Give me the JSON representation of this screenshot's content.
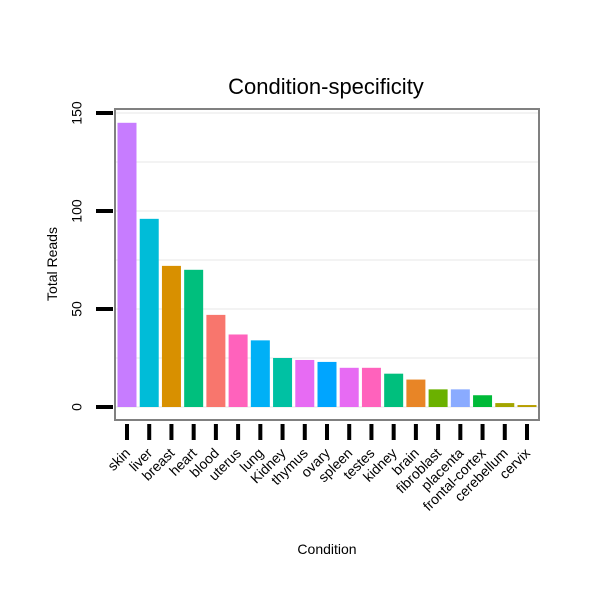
{
  "chart_data": {
    "type": "bar",
    "title": "Condition-specificity",
    "xlabel": "Condition",
    "ylabel": "Total Reads",
    "ylim": [
      0,
      150
    ],
    "yticks": [
      0,
      50,
      100,
      150
    ],
    "categories": [
      "skin",
      "liver",
      "breast",
      "heart",
      "blood",
      "uterus",
      "lung",
      "Kidney",
      "thymus",
      "ovary",
      "spleen",
      "testes",
      "kidney",
      "brain",
      "fibroblast",
      "placenta",
      "frontal-cortex",
      "cerebellum",
      "cervix"
    ],
    "values": [
      145,
      96,
      72,
      70,
      47,
      37,
      34,
      25,
      24,
      23,
      20,
      20,
      17,
      14,
      9,
      9,
      6,
      2,
      1
    ],
    "colors": [
      "#C77CFF",
      "#00BCD8",
      "#D89000",
      "#00BF7D",
      "#F8766D",
      "#FF62BC",
      "#00B0F6",
      "#00C1A3",
      "#E76BF3",
      "#00A5FF",
      "#E76BF3",
      "#FF62BC",
      "#00BF7D",
      "#E88526",
      "#6BB100",
      "#8AABFF",
      "#00BA38",
      "#A3A500",
      "#B79F00"
    ],
    "grid": true,
    "legend": "none"
  }
}
